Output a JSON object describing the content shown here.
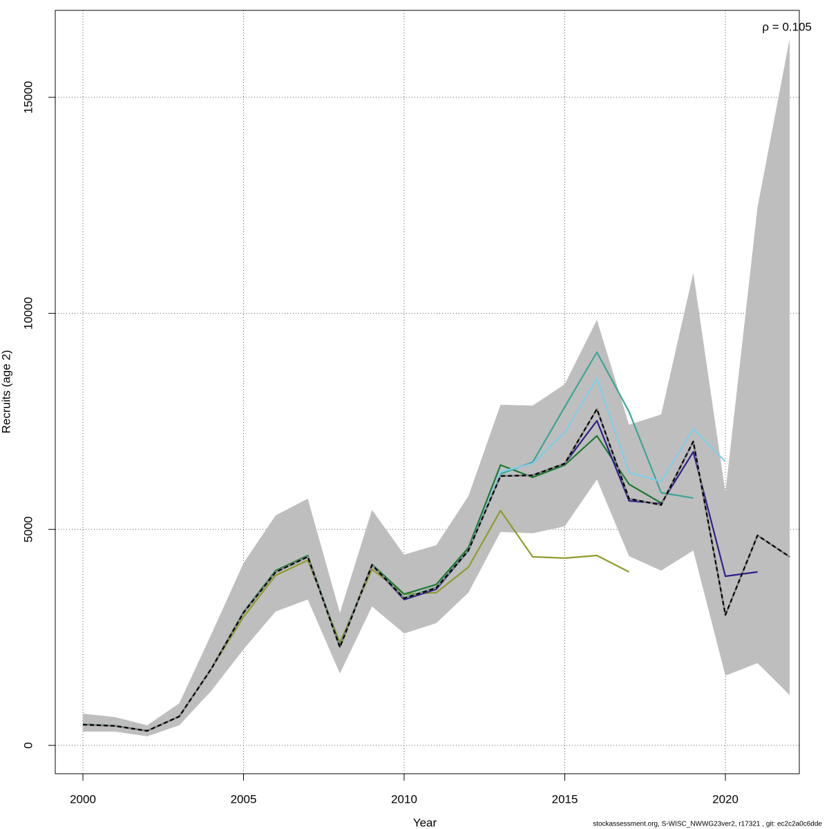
{
  "chart_data": {
    "type": "line",
    "annotation": "ρ = 0.105",
    "xlabel": "Year",
    "ylabel": "Recruits (age 2)",
    "footer": "stockassessment.org, S-WISC_NWWG23ver2, r17321 , git: ec2c2a0c6dde",
    "x": [
      2000,
      2001,
      2002,
      2003,
      2004,
      2005,
      2006,
      2007,
      2008,
      2009,
      2010,
      2011,
      2012,
      2013,
      2014,
      2015,
      2016,
      2017,
      2018,
      2019,
      2020,
      2021,
      2022
    ],
    "xlim": [
      1999.14,
      2022.3
    ],
    "xticks": [
      2000,
      2005,
      2010,
      2015,
      2020
    ],
    "ylim": [
      -656,
      17013
    ],
    "yticks": [
      0,
      5000,
      10000,
      15000
    ],
    "grid": true,
    "band": {
      "color": "#bebebe",
      "upper": [
        735,
        655,
        465,
        975,
        2575,
        4220,
        5325,
        5710,
        3070,
        5450,
        4415,
        4635,
        5770,
        7885,
        7865,
        8360,
        9850,
        7420,
        7660,
        10935,
        5850,
        12455,
        16360
      ],
      "lower": [
        320,
        320,
        210,
        465,
        1265,
        2225,
        3100,
        3375,
        1665,
        3215,
        2590,
        2830,
        3535,
        4940,
        4910,
        5070,
        6155,
        4380,
        4045,
        4510,
        1615,
        1905,
        1165
      ]
    },
    "series": [
      {
        "color": "#8f9a2a",
        "values": [
          480,
          450,
          335,
          670,
          1775,
          2975,
          3935,
          4285,
          2380,
          4075,
          3500,
          3535,
          4125,
          5435,
          4365,
          4335,
          4395,
          4015,
          null,
          null,
          null,
          null,
          null
        ]
      },
      {
        "color": "#1a7a2e",
        "values": [
          490,
          455,
          340,
          675,
          1785,
          3090,
          4045,
          4395,
          2300,
          4190,
          3500,
          3725,
          4575,
          6490,
          6205,
          6490,
          7165,
          6045,
          5610,
          null,
          null,
          null,
          null
        ]
      },
      {
        "color": "#3aa595",
        "values": [
          485,
          452,
          337,
          672,
          1780,
          3080,
          4020,
          4375,
          2280,
          4180,
          3420,
          3660,
          4525,
          6285,
          6555,
          7835,
          9100,
          7725,
          5850,
          5725,
          null,
          null,
          null
        ]
      },
      {
        "color": "#7fcdea",
        "values": [
          485,
          452,
          337,
          672,
          1780,
          3075,
          4015,
          4370,
          2275,
          4178,
          3410,
          3650,
          4515,
          6330,
          6525,
          7245,
          8490,
          6315,
          6110,
          7325,
          6570,
          null,
          null
        ]
      },
      {
        "color": "#2b1f8a",
        "values": [
          482,
          451,
          336,
          671,
          1777,
          3072,
          4012,
          4367,
          2272,
          4176,
          3375,
          3615,
          4505,
          6235,
          6255,
          6525,
          7515,
          5660,
          5595,
          6795,
          3915,
          4015,
          null
        ]
      },
      {
        "color": "#000000",
        "dashed": true,
        "values": [
          480,
          450,
          335,
          670,
          1775,
          3070,
          4010,
          4365,
          2270,
          4175,
          3405,
          3645,
          4510,
          6235,
          6250,
          6525,
          7785,
          5710,
          5565,
          7035,
          3020,
          4860,
          4365
        ]
      }
    ]
  }
}
